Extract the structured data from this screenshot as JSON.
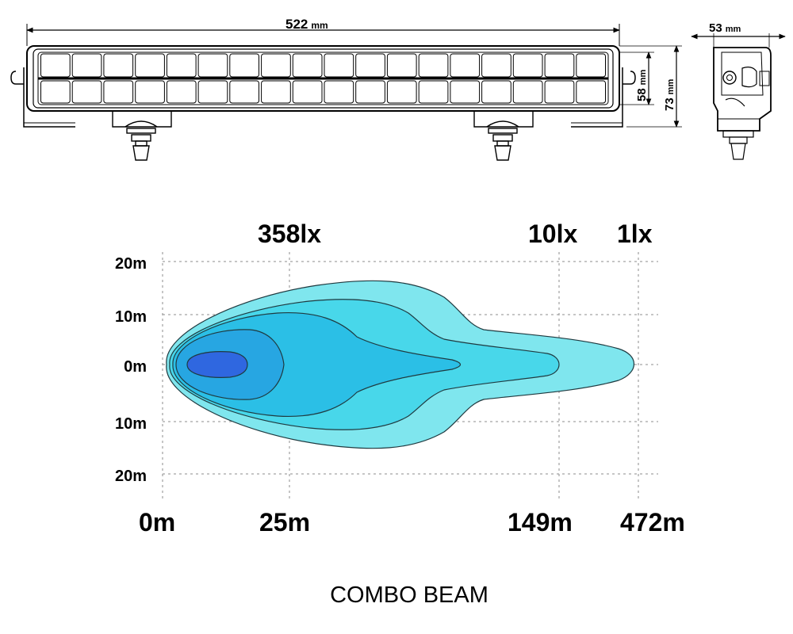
{
  "dimensions": {
    "length": {
      "value": "522",
      "unit": "mm"
    },
    "height_lens": {
      "value": "58",
      "unit": "mm"
    },
    "height_total": {
      "value": "73",
      "unit": "mm"
    },
    "depth": {
      "value": "53",
      "unit": "mm"
    }
  },
  "beam_chart": {
    "title": "COMBO BEAM",
    "lux_labels": [
      "358lx",
      "10lx",
      "1lx"
    ],
    "distance_labels": [
      "0m",
      "25m",
      "149m",
      "472m"
    ],
    "width_labels": [
      "20m",
      "10m",
      "0m",
      "10m",
      "20m"
    ]
  },
  "colors": {
    "outline": "#000000",
    "grid": "#8c8c8c",
    "beam_outer": "#7fe6ee",
    "beam_mid": "#48d7ea",
    "beam_inner": "#2bbfe6",
    "beam_core_ring": "#27a6e2",
    "beam_core": "#2f67e0"
  }
}
